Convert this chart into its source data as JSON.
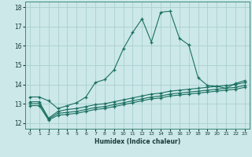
{
  "xlabel": "Humidex (Indice chaleur)",
  "background_color": "#cce8e8",
  "grid_color": "#aacfcf",
  "line_color": "#1a7060",
  "xlim": [
    -0.5,
    23.5
  ],
  "ylim": [
    11.7,
    18.3
  ],
  "yticks": [
    12,
    13,
    14,
    15,
    16,
    17,
    18
  ],
  "xticks": [
    0,
    1,
    2,
    3,
    4,
    5,
    6,
    7,
    8,
    9,
    10,
    11,
    12,
    13,
    14,
    15,
    16,
    17,
    18,
    19,
    20,
    21,
    22,
    23
  ],
  "line1_x": [
    0,
    1,
    2,
    3,
    4,
    5,
    6,
    7,
    8,
    9,
    10,
    11,
    12,
    13,
    14,
    15,
    16,
    17,
    18,
    19,
    20,
    21,
    22,
    23
  ],
  "line1_y": [
    13.35,
    13.35,
    13.15,
    12.75,
    12.9,
    13.05,
    13.35,
    14.1,
    14.25,
    14.75,
    15.85,
    16.7,
    17.4,
    16.2,
    17.75,
    17.8,
    16.4,
    16.05,
    14.35,
    13.95,
    13.9,
    13.8,
    14.05,
    14.2
  ],
  "line2_x": [
    0,
    1,
    2,
    3,
    4,
    5,
    6,
    7,
    8,
    9,
    10,
    11,
    12,
    13,
    14,
    15,
    16,
    17,
    18,
    19,
    20,
    21,
    22,
    23
  ],
  "line2_y": [
    13.1,
    13.1,
    12.25,
    12.6,
    12.7,
    12.75,
    12.85,
    12.95,
    13.0,
    13.1,
    13.2,
    13.3,
    13.4,
    13.5,
    13.55,
    13.65,
    13.7,
    13.75,
    13.8,
    13.85,
    13.9,
    13.95,
    14.0,
    14.1
  ],
  "line3_x": [
    0,
    1,
    2,
    3,
    4,
    5,
    6,
    7,
    8,
    9,
    10,
    11,
    12,
    13,
    14,
    15,
    16,
    17,
    18,
    19,
    20,
    21,
    22,
    23
  ],
  "line3_y": [
    13.0,
    13.0,
    12.2,
    12.5,
    12.55,
    12.6,
    12.7,
    12.8,
    12.85,
    12.95,
    13.05,
    13.15,
    13.25,
    13.35,
    13.4,
    13.5,
    13.55,
    13.6,
    13.65,
    13.7,
    13.75,
    13.8,
    13.85,
    13.95
  ],
  "line4_x": [
    0,
    1,
    2,
    3,
    4,
    5,
    6,
    7,
    8,
    9,
    10,
    11,
    12,
    13,
    14,
    15,
    16,
    17,
    18,
    19,
    20,
    21,
    22,
    23
  ],
  "line4_y": [
    12.9,
    12.9,
    12.15,
    12.4,
    12.45,
    12.5,
    12.6,
    12.7,
    12.75,
    12.85,
    12.95,
    13.05,
    13.15,
    13.25,
    13.3,
    13.4,
    13.45,
    13.5,
    13.55,
    13.6,
    13.65,
    13.7,
    13.75,
    13.85
  ]
}
